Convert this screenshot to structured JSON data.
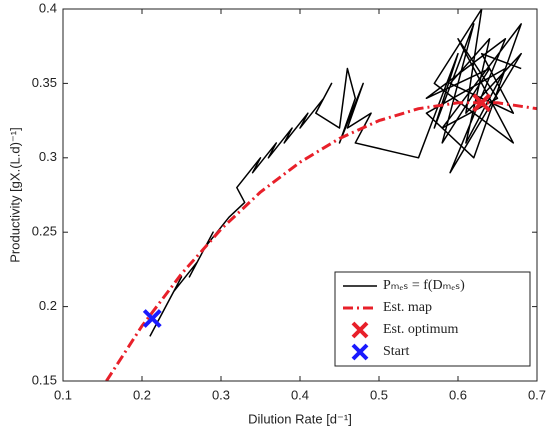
{
  "chart_data": {
    "type": "line",
    "xlabel": "Dilution Rate [d⁻¹]",
    "ylabel": "Productivity [gX.(L.d)⁻¹]",
    "xlim": [
      0.1,
      0.7
    ],
    "xticks": [
      0.1,
      0.2,
      0.3,
      0.4,
      0.5,
      0.6,
      0.7
    ],
    "ylim": [
      0.15,
      0.4
    ],
    "yticks": [
      0.15,
      0.2,
      0.25,
      0.3,
      0.35,
      0.4
    ],
    "legend": "lower right",
    "series": [
      {
        "name": "Pₘₑₛ = f(Dₘₑₛ)",
        "color": "#000000",
        "style": "solid",
        "x": [
          0.21,
          0.23,
          0.22,
          0.25,
          0.24,
          0.27,
          0.26,
          0.29,
          0.28,
          0.31,
          0.33,
          0.32,
          0.35,
          0.34,
          0.37,
          0.36,
          0.39,
          0.38,
          0.41,
          0.4,
          0.43,
          0.44,
          0.42,
          0.45,
          0.46,
          0.47,
          0.45,
          0.48,
          0.46,
          0.49,
          0.47,
          0.55,
          0.6,
          0.57,
          0.62,
          0.58,
          0.64,
          0.56,
          0.66,
          0.59,
          0.68,
          0.61,
          0.63,
          0.57,
          0.67,
          0.6,
          0.65,
          0.58,
          0.68,
          0.62,
          0.56,
          0.66,
          0.61,
          0.64,
          0.59,
          0.67,
          0.63,
          0.68
        ],
        "values": [
          0.18,
          0.2,
          0.19,
          0.22,
          0.21,
          0.23,
          0.22,
          0.25,
          0.24,
          0.26,
          0.27,
          0.28,
          0.3,
          0.29,
          0.31,
          0.3,
          0.32,
          0.31,
          0.33,
          0.32,
          0.34,
          0.35,
          0.33,
          0.32,
          0.36,
          0.34,
          0.31,
          0.35,
          0.32,
          0.33,
          0.31,
          0.3,
          0.37,
          0.32,
          0.39,
          0.31,
          0.36,
          0.34,
          0.38,
          0.29,
          0.37,
          0.33,
          0.4,
          0.35,
          0.31,
          0.38,
          0.34,
          0.32,
          0.39,
          0.3,
          0.33,
          0.36,
          0.31,
          0.38,
          0.35,
          0.33,
          0.37,
          0.36
        ]
      },
      {
        "name": "Est. map",
        "color": "#e8202a",
        "style": "dashdot",
        "x": [
          0.155,
          0.2,
          0.25,
          0.3,
          0.35,
          0.4,
          0.45,
          0.5,
          0.55,
          0.6,
          0.65,
          0.7
        ],
        "values": [
          0.15,
          0.187,
          0.222,
          0.252,
          0.277,
          0.297,
          0.313,
          0.325,
          0.333,
          0.337,
          0.337,
          0.333
        ]
      },
      {
        "name": "Est. optimum",
        "color": "#e8202a",
        "style": "marker",
        "x": [
          0.63
        ],
        "values": [
          0.337
        ]
      },
      {
        "name": "Start",
        "color": "#1a1aff",
        "style": "marker",
        "x": [
          0.213
        ],
        "values": [
          0.192
        ]
      }
    ]
  }
}
